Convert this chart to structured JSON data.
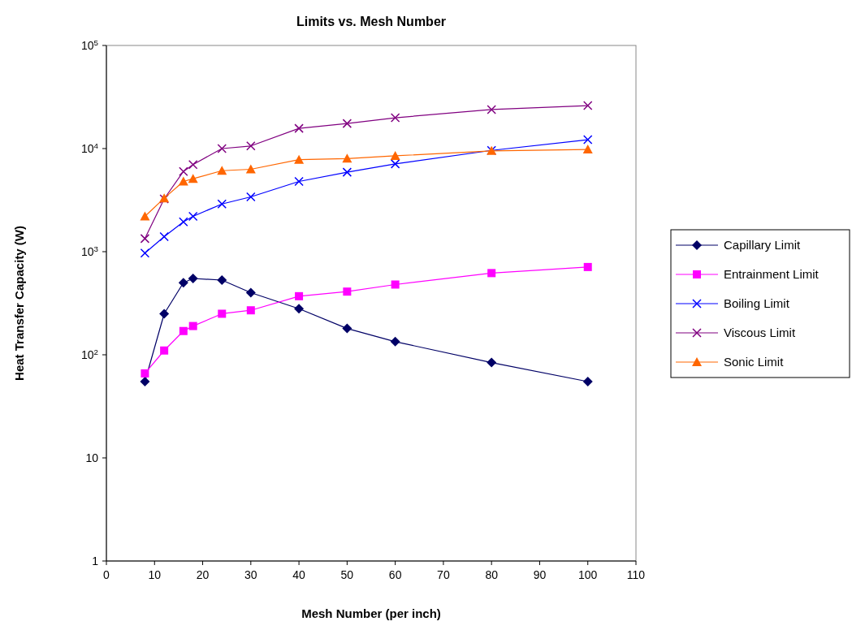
{
  "chart_data": {
    "type": "line",
    "title": "Limits vs. Mesh Number",
    "xlabel": "Mesh Number (per inch)",
    "ylabel": "Heat Transfer Capacity (W)",
    "log": "y",
    "grid": false,
    "legend": "right",
    "x": [
      8,
      12,
      16,
      18,
      24,
      30,
      40,
      50,
      60,
      80,
      100
    ],
    "xlim": [
      0,
      110
    ],
    "xticks": [
      0,
      10,
      20,
      30,
      40,
      50,
      60,
      70,
      80,
      90,
      100,
      110
    ],
    "ylim": [
      1,
      100000
    ],
    "yticks": [
      1,
      10,
      {
        "value": 100,
        "label": "10$^{2}$"
      },
      {
        "value": 1000,
        "label": "10$^{3}$"
      },
      {
        "value": 10000,
        "label": "10$^{4}$"
      },
      {
        "value": 100000,
        "label": "10$^{5}$"
      }
    ],
    "series": [
      {
        "name": "Capillary Limit",
        "color": "#000066",
        "marker": "diamond",
        "values": [
          55,
          250,
          500,
          550,
          530,
          400,
          280,
          180,
          134,
          84,
          55
        ]
      },
      {
        "name": "Entrainment Limit",
        "color": "#ff00ff",
        "marker": "square",
        "values": [
          66,
          110,
          170,
          190,
          250,
          270,
          370,
          410,
          480,
          620,
          710
        ]
      },
      {
        "name": "Boiling Limit",
        "color": "#0000ff",
        "marker": "cross",
        "values": [
          970,
          1400,
          1950,
          2200,
          2900,
          3400,
          4800,
          5900,
          7100,
          9600,
          12200
        ]
      },
      {
        "name": "Viscous Limit",
        "color": "#800080",
        "marker": "cross",
        "values": [
          1340,
          3250,
          6000,
          7000,
          10000,
          10600,
          15700,
          17500,
          19900,
          23900,
          26100
        ]
      },
      {
        "name": "Sonic Limit",
        "color": "#ff6600",
        "marker": "triangle",
        "values": [
          2200,
          3300,
          4800,
          5100,
          6100,
          6300,
          7800,
          8000,
          8500,
          9500,
          9800
        ]
      }
    ]
  }
}
